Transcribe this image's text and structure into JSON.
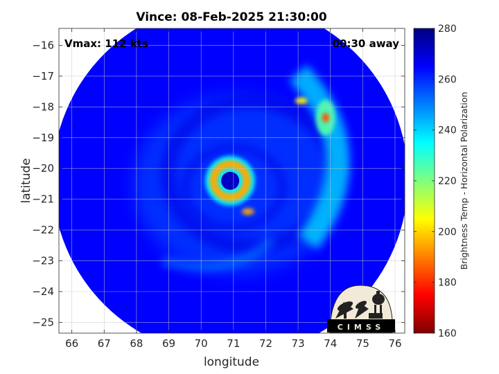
{
  "chart_data": {
    "type": "heatmap",
    "title": "Vince: 08-Feb-2025 21:30:00",
    "xlabel": "longitude",
    "ylabel": "latitude",
    "xlim": [
      65.6,
      76.3
    ],
    "ylim": [
      -25.35,
      -15.45
    ],
    "x_ticks": [
      66,
      67,
      68,
      69,
      70,
      71,
      72,
      73,
      74,
      75,
      76
    ],
    "y_ticks": [
      -16,
      -17,
      -18,
      -19,
      -20,
      -21,
      -22,
      -23,
      -24,
      -25
    ],
    "grid": true,
    "annotations": {
      "vmax": "Vmax: 112 kts",
      "time_offset": "00:30 away"
    },
    "colorbar": {
      "label": "Brightness Temp - Horizontal Polarization",
      "min": 160,
      "max": 280,
      "ticks": [
        160,
        180,
        200,
        220,
        240,
        260,
        280
      ]
    },
    "eye_center": {
      "lon": 70.9,
      "lat": -20.4
    },
    "swath_center": {
      "lon": 70.9,
      "lat": -20.35
    },
    "swath_radius_deg": 5.5,
    "features": [
      {
        "lon": 70.9,
        "lat": -20.4,
        "temp": 195,
        "kind": "eyewall-ring"
      },
      {
        "lon": 73.85,
        "lat": -18.35,
        "temp": 185,
        "kind": "rainband-core"
      },
      {
        "lon": 71.45,
        "lat": -21.4,
        "temp": 195,
        "kind": "rainband-cell"
      },
      {
        "lon": 73.1,
        "lat": -17.8,
        "temp": 205,
        "kind": "rainband-cell"
      }
    ],
    "background_temp": 265
  },
  "logo": {
    "text": "CIMSS"
  }
}
